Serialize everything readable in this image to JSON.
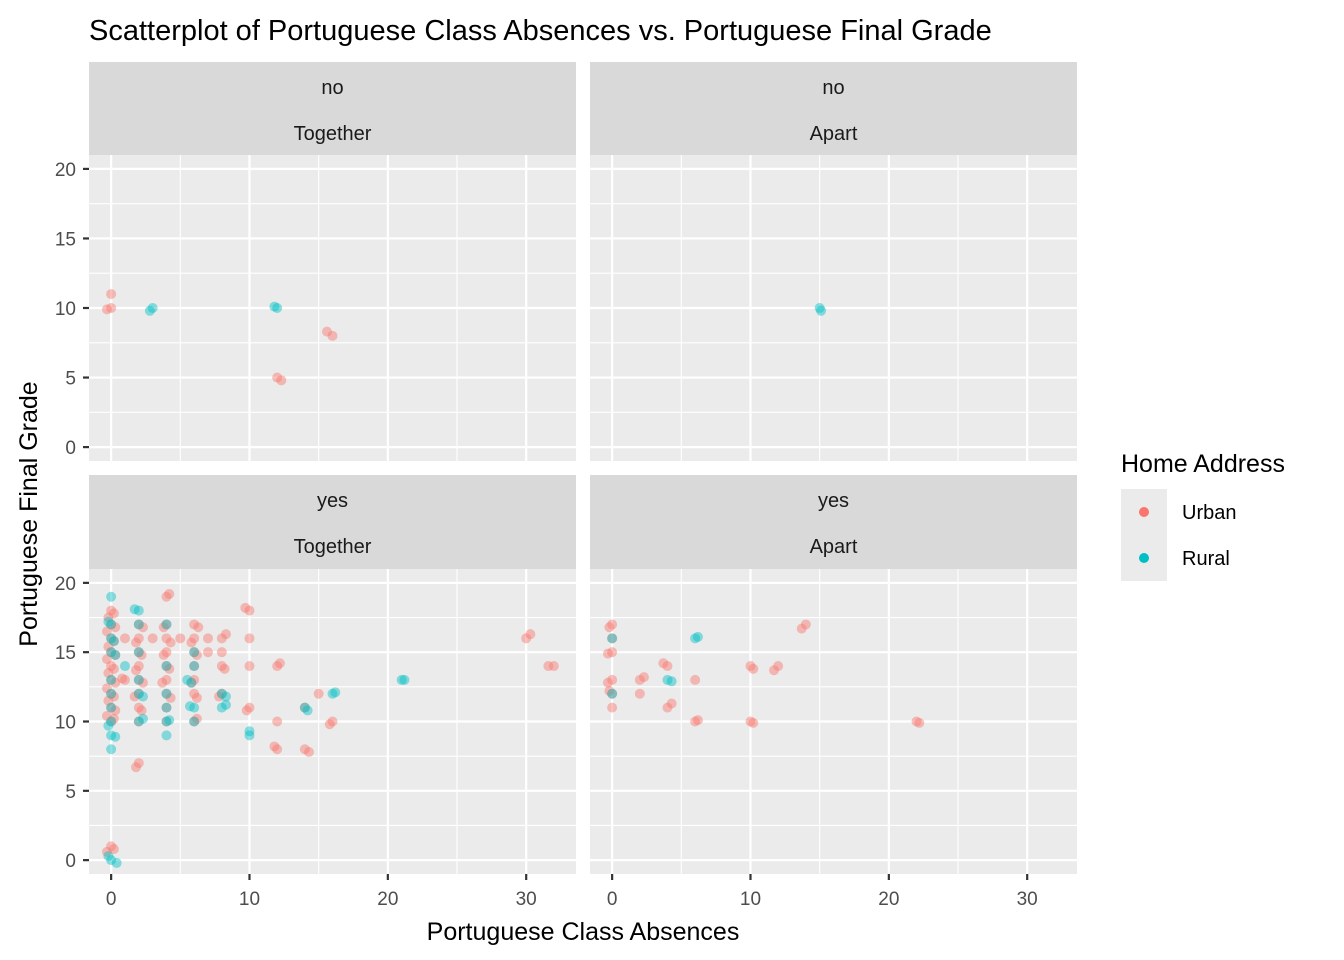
{
  "chart_data": {
    "type": "scatter",
    "title": "Scatterplot of Portuguese Class Absences vs. Portuguese Final Grade",
    "xlabel": "Portuguese Class Absences",
    "ylabel": "Portuguese Final Grade",
    "xlim": [
      -1.6,
      33.6
    ],
    "ylim": [
      -1,
      21
    ],
    "x_ticks": [
      0,
      10,
      20,
      30
    ],
    "y_ticks": [
      0,
      5,
      10,
      15,
      20
    ],
    "grid": true,
    "legend": {
      "title": "Home Address",
      "position": "right",
      "entries": [
        {
          "name": "Urban",
          "color": "#F8766D"
        },
        {
          "name": "Rural",
          "color": "#00BFC4"
        }
      ]
    },
    "facets": [
      {
        "row_label": "no",
        "col_label": "Together",
        "series": [
          {
            "name": "Urban",
            "points": [
              [
                0,
                11
              ],
              [
                0,
                10
              ],
              [
                -0.3,
                9.9
              ],
              [
                12,
                5
              ],
              [
                12.3,
                4.8
              ],
              [
                16,
                8
              ],
              [
                15.6,
                8.3
              ]
            ]
          },
          {
            "name": "Rural",
            "points": [
              [
                3,
                10
              ],
              [
                2.8,
                9.8
              ],
              [
                12,
                10
              ],
              [
                11.8,
                10.1
              ]
            ]
          }
        ]
      },
      {
        "row_label": "no",
        "col_label": "Apart",
        "series": [
          {
            "name": "Urban",
            "points": []
          },
          {
            "name": "Rural",
            "points": [
              [
                15,
                10
              ],
              [
                15.1,
                9.8
              ]
            ]
          }
        ]
      },
      {
        "row_label": "yes",
        "col_label": "Together",
        "series": [
          {
            "name": "Urban",
            "points": [
              [
                0,
                18
              ],
              [
                0.2,
                17.8
              ],
              [
                -0.2,
                17.5
              ],
              [
                0,
                17
              ],
              [
                0.3,
                16.8
              ],
              [
                -0.3,
                16.5
              ],
              [
                0,
                16
              ],
              [
                0.2,
                15.8
              ],
              [
                -0.2,
                15.4
              ],
              [
                0,
                15
              ],
              [
                0.3,
                14.8
              ],
              [
                -0.3,
                14.5
              ],
              [
                0,
                14
              ],
              [
                0.2,
                13.8
              ],
              [
                -0.2,
                13.5
              ],
              [
                0,
                13
              ],
              [
                0.3,
                12.8
              ],
              [
                -0.3,
                12.4
              ],
              [
                0,
                12
              ],
              [
                0.2,
                11.8
              ],
              [
                -0.2,
                11.5
              ],
              [
                0,
                11
              ],
              [
                0.3,
                10.8
              ],
              [
                -0.3,
                10.4
              ],
              [
                0,
                10
              ],
              [
                0.2,
                10.2
              ],
              [
                0,
                1
              ],
              [
                0.2,
                0.8
              ],
              [
                -0.3,
                0.6
              ],
              [
                1,
                16
              ],
              [
                1,
                13
              ],
              [
                0.8,
                13.1
              ],
              [
                2,
                17
              ],
              [
                2.3,
                16.8
              ],
              [
                2,
                16
              ],
              [
                1.8,
                15.7
              ],
              [
                2,
                15
              ],
              [
                2.2,
                14.8
              ],
              [
                2,
                14
              ],
              [
                1.8,
                13.7
              ],
              [
                2,
                13
              ],
              [
                2.3,
                12.8
              ],
              [
                2,
                12
              ],
              [
                1.7,
                11.8
              ],
              [
                2,
                11
              ],
              [
                2.2,
                10.8
              ],
              [
                2,
                7
              ],
              [
                1.8,
                6.7
              ],
              [
                2,
                10
              ],
              [
                3,
                16
              ],
              [
                4,
                19
              ],
              [
                4.2,
                19.2
              ],
              [
                4,
                17
              ],
              [
                3.8,
                16.8
              ],
              [
                4,
                16
              ],
              [
                4.3,
                15.7
              ],
              [
                4,
                15
              ],
              [
                3.8,
                14.8
              ],
              [
                4,
                14
              ],
              [
                4.2,
                13.8
              ],
              [
                4,
                13
              ],
              [
                3.7,
                12.8
              ],
              [
                4,
                12
              ],
              [
                4.3,
                11.7
              ],
              [
                4,
                11
              ],
              [
                4,
                10
              ],
              [
                5,
                16
              ],
              [
                6,
                17
              ],
              [
                6.3,
                16.8
              ],
              [
                6,
                16
              ],
              [
                5.8,
                15.7
              ],
              [
                6,
                15
              ],
              [
                6.2,
                14.8
              ],
              [
                6,
                14
              ],
              [
                6,
                13
              ],
              [
                5.8,
                12.8
              ],
              [
                6,
                12
              ],
              [
                6.2,
                11.7
              ],
              [
                6,
                10
              ],
              [
                6.2,
                10.2
              ],
              [
                7,
                16
              ],
              [
                7,
                15
              ],
              [
                8,
                16
              ],
              [
                8.3,
                16.3
              ],
              [
                8,
                15
              ],
              [
                8,
                14
              ],
              [
                8.2,
                13.8
              ],
              [
                8,
                12
              ],
              [
                7.8,
                11.8
              ],
              [
                10,
                18
              ],
              [
                9.7,
                18.2
              ],
              [
                10,
                16
              ],
              [
                10,
                14
              ],
              [
                10,
                11
              ],
              [
                9.8,
                10.8
              ],
              [
                12,
                14
              ],
              [
                12.2,
                14.2
              ],
              [
                12,
                10
              ],
              [
                12,
                8
              ],
              [
                11.8,
                8.2
              ],
              [
                14,
                8
              ],
              [
                14.3,
                7.8
              ],
              [
                14,
                11
              ],
              [
                15,
                12
              ],
              [
                16,
                10
              ],
              [
                15.8,
                9.8
              ],
              [
                30,
                16
              ],
              [
                30.3,
                16.3
              ],
              [
                32,
                14
              ],
              [
                31.6,
                14
              ]
            ]
          },
          {
            "name": "Rural",
            "points": [
              [
                0,
                19
              ],
              [
                0,
                17
              ],
              [
                -0.2,
                17.2
              ],
              [
                0,
                16
              ],
              [
                0.2,
                15.8
              ],
              [
                0,
                15
              ],
              [
                0.3,
                14.8
              ],
              [
                0,
                13
              ],
              [
                0,
                12
              ],
              [
                0,
                11
              ],
              [
                0,
                10
              ],
              [
                -0.2,
                9.7
              ],
              [
                0,
                9
              ],
              [
                0.3,
                8.9
              ],
              [
                0,
                8
              ],
              [
                0,
                0
              ],
              [
                -0.2,
                0.3
              ],
              [
                0.4,
                -0.2
              ],
              [
                1,
                14
              ],
              [
                2,
                18
              ],
              [
                1.7,
                18.1
              ],
              [
                2,
                17
              ],
              [
                2,
                15
              ],
              [
                2,
                13
              ],
              [
                2,
                12
              ],
              [
                2.3,
                11.8
              ],
              [
                2,
                10
              ],
              [
                2.3,
                10.2
              ],
              [
                4,
                17
              ],
              [
                4,
                14
              ],
              [
                4,
                12
              ],
              [
                4,
                11
              ],
              [
                4,
                10
              ],
              [
                4.2,
                10.1
              ],
              [
                4,
                9
              ],
              [
                5.5,
                13
              ],
              [
                5.8,
                12.8
              ],
              [
                6,
                15
              ],
              [
                6,
                14
              ],
              [
                6,
                11
              ],
              [
                5.7,
                11.1
              ],
              [
                6,
                10
              ],
              [
                8,
                12
              ],
              [
                8,
                11
              ],
              [
                8.3,
                11.2
              ],
              [
                8.3,
                11.8
              ],
              [
                10,
                9
              ],
              [
                10,
                9.3
              ],
              [
                14,
                11
              ],
              [
                14.2,
                10.8
              ],
              [
                16,
                12
              ],
              [
                16.2,
                12.1
              ],
              [
                21,
                13
              ],
              [
                21.2,
                13
              ]
            ]
          }
        ]
      },
      {
        "row_label": "yes",
        "col_label": "Apart",
        "series": [
          {
            "name": "Urban",
            "points": [
              [
                0,
                17
              ],
              [
                -0.2,
                16.8
              ],
              [
                0,
                16
              ],
              [
                0,
                15
              ],
              [
                -0.3,
                14.9
              ],
              [
                0,
                13
              ],
              [
                -0.3,
                12.8
              ],
              [
                0,
                12
              ],
              [
                -0.2,
                12.2
              ],
              [
                0,
                11
              ],
              [
                2,
                13
              ],
              [
                2.3,
                13.2
              ],
              [
                2,
                12
              ],
              [
                4,
                14
              ],
              [
                3.7,
                14.2
              ],
              [
                4,
                11
              ],
              [
                4.3,
                11.3
              ],
              [
                6,
                13
              ],
              [
                6,
                10
              ],
              [
                6.2,
                10.1
              ],
              [
                10,
                14
              ],
              [
                10.2,
                13.8
              ],
              [
                10,
                10
              ],
              [
                10.2,
                9.9
              ],
              [
                12,
                14
              ],
              [
                11.7,
                13.7
              ],
              [
                14,
                17
              ],
              [
                13.7,
                16.7
              ],
              [
                22,
                10
              ],
              [
                22.2,
                9.9
              ]
            ]
          },
          {
            "name": "Rural",
            "points": [
              [
                0,
                16
              ],
              [
                0,
                12
              ],
              [
                4,
                13
              ],
              [
                4.3,
                12.9
              ],
              [
                6,
                16
              ],
              [
                6.2,
                16.1
              ]
            ]
          }
        ]
      }
    ]
  }
}
